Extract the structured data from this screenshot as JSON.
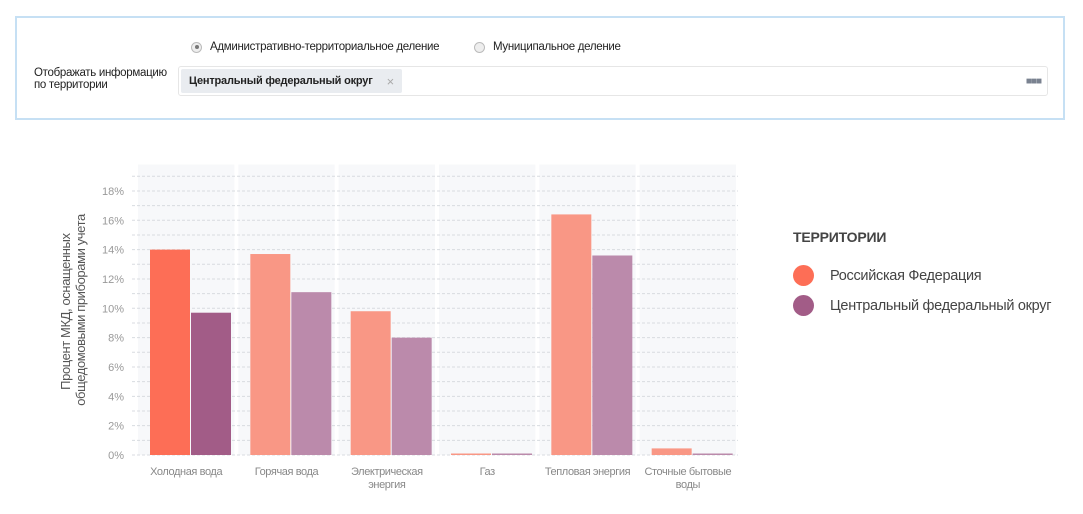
{
  "filter": {
    "radio_options": [
      {
        "label": "Административно-территориальное деление",
        "selected": true
      },
      {
        "label": "Муниципальное деление",
        "selected": false
      }
    ],
    "territory_label_line1": "Отображать информацию",
    "territory_label_line2": "по территории",
    "selected_tags": [
      "Центральный федеральный округ"
    ],
    "remove_icon": "×",
    "more_icon": "■■■"
  },
  "legend": {
    "title": "ТЕРРИТОРИИ",
    "items": [
      {
        "label": "Российская Федерация",
        "color": "#fd6e56"
      },
      {
        "label": "Центральный федеральный округ",
        "color": "#a25c87"
      }
    ]
  },
  "chart_data": {
    "type": "bar",
    "ylabel_line1": "Процент МКД, оснащенных",
    "ylabel_line2": "общедомовыми приборами учета",
    "categories": [
      "Холодная вода",
      "Горячая вода",
      "Электрическая энергия",
      "Газ",
      "Тепловая энергия",
      "Сточные бытовые воды"
    ],
    "series": [
      {
        "name": "Российская Федерация",
        "values": [
          14.0,
          13.7,
          9.8,
          0.1,
          16.4,
          0.45
        ],
        "color": "#fd6e56",
        "color_muted": "#f99785"
      },
      {
        "name": "Центральный федеральный округ",
        "values": [
          9.7,
          11.1,
          8.0,
          0.05,
          13.6,
          0.1
        ],
        "color": "#a25c87",
        "color_muted": "#bb8aab"
      }
    ],
    "highlighted_category": "Холодная вода",
    "yticks": [
      "0%",
      "2%",
      "4%",
      "6%",
      "8%",
      "10%",
      "12%",
      "14%",
      "16%",
      "18%"
    ],
    "ylim": [
      0,
      19.8
    ],
    "grid": true,
    "legend_position": "right"
  }
}
